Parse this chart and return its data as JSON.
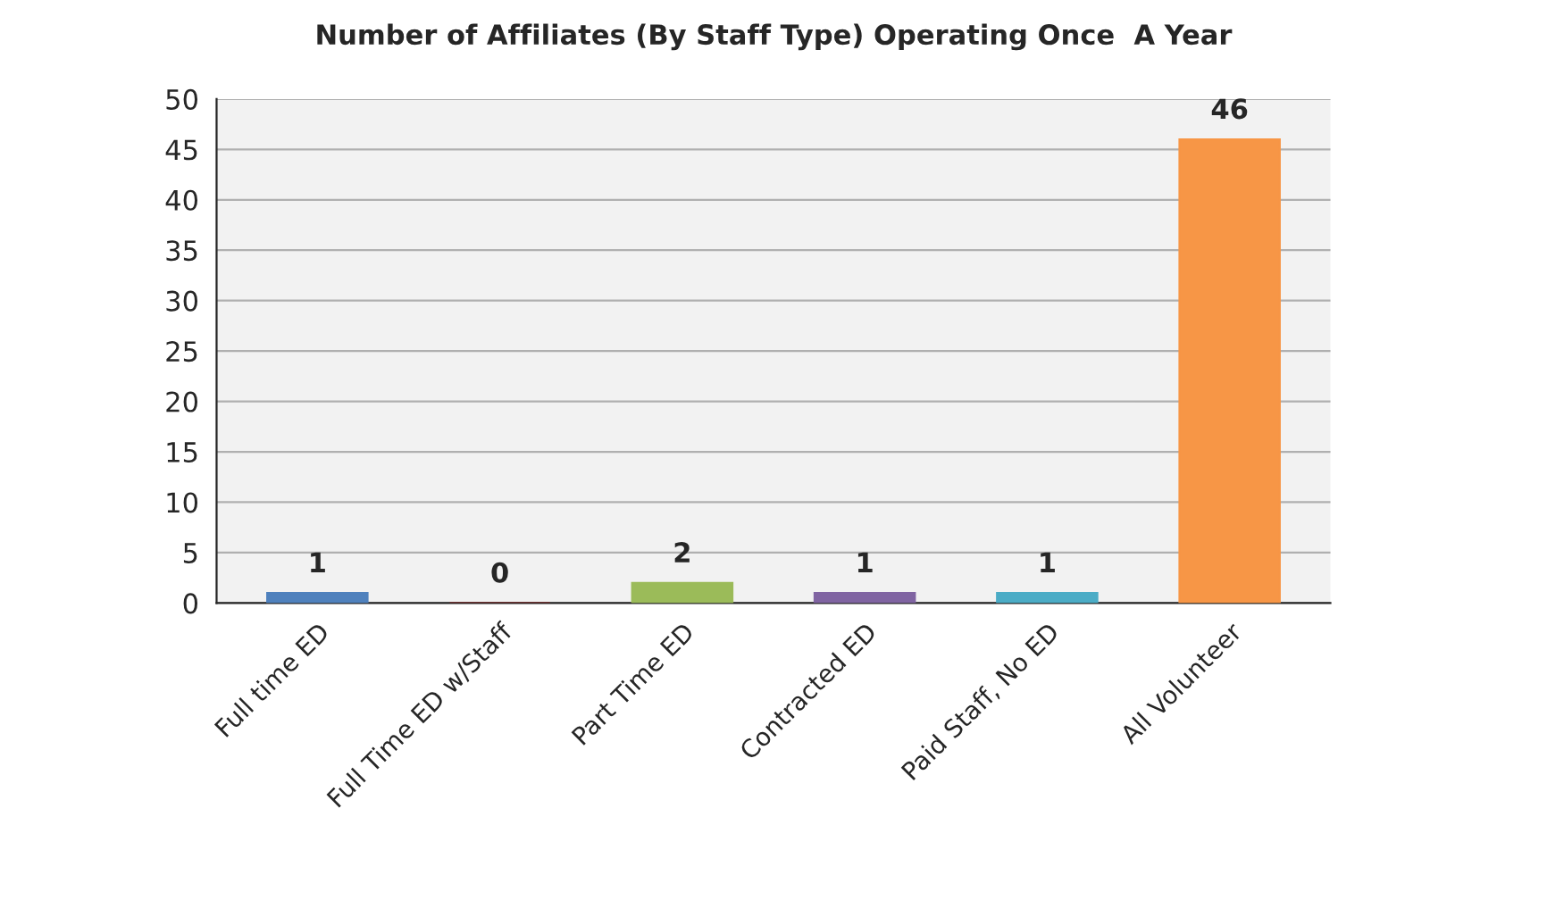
{
  "chart_data": {
    "type": "bar",
    "title": "Number of Affiliates (By Staff Type) Operating Once  A Year",
    "categories": [
      "Full time ED",
      "Full Time ED w/Staff",
      "Part Time ED",
      "Contracted ED",
      "Paid Staff, No ED",
      "All Volunteer"
    ],
    "values": [
      1,
      0,
      2,
      1,
      1,
      46
    ],
    "colors": [
      "#4f81bd",
      "#7b2b2b",
      "#9bbb59",
      "#8064a2",
      "#4bacc6",
      "#f79646"
    ],
    "ylim": [
      0,
      50
    ],
    "yticks": [
      0,
      5,
      10,
      15,
      20,
      25,
      30,
      35,
      40,
      45,
      50
    ],
    "grid": "y",
    "data_labels": true
  }
}
